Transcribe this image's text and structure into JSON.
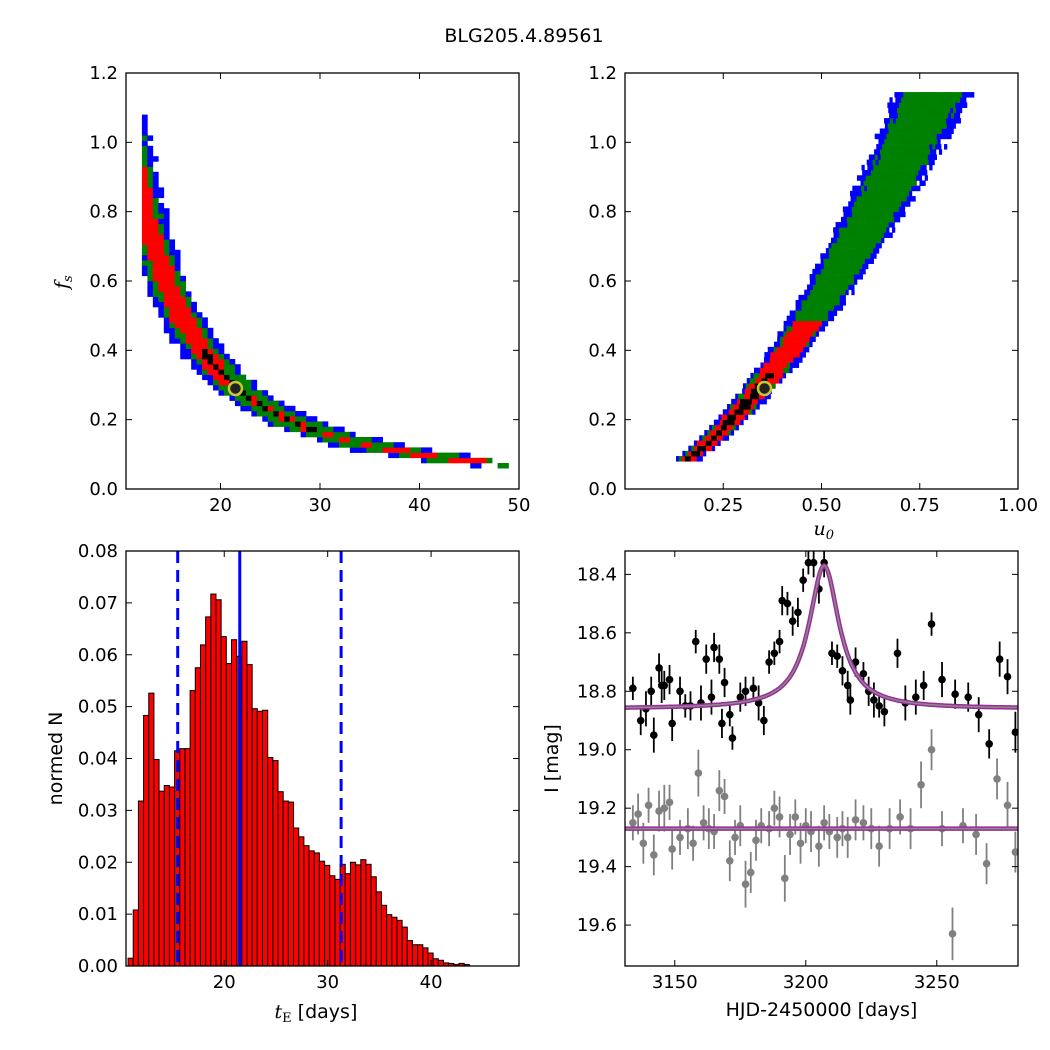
{
  "figure": {
    "title": "BLG205.4.89561"
  },
  "chart_data": [
    {
      "id": "fs_vs_tE",
      "type": "heatmap",
      "xlabel": "",
      "ylabel": "f_s",
      "ylabel_main": "f",
      "ylabel_sub": "s",
      "xlim": [
        10.5,
        50
      ],
      "ylim": [
        0,
        1.2
      ],
      "xticks": [
        20,
        30,
        40,
        50
      ],
      "yticks": [
        0.0,
        0.2,
        0.4,
        0.6,
        0.8,
        1.0,
        1.2
      ],
      "xtick_labels": [
        "20",
        "30",
        "40",
        "50"
      ],
      "ytick_labels": [
        "0.0",
        "0.2",
        "0.4",
        "0.6",
        "0.8",
        "1.0",
        "1.2"
      ],
      "confidence_colors": {
        "blue": "#0000ff",
        "green": "#008000",
        "red": "#ff0000",
        "best": "#000000"
      },
      "relation": "f_s ≈ 75 / t_E^1.82 (ridge of posterior)",
      "best_fit": {
        "x": 21.5,
        "y": 0.29
      },
      "marker": {
        "face": "#222222",
        "edge": "#c8c832"
      }
    },
    {
      "id": "fs_vs_u0",
      "type": "heatmap",
      "xlabel": "u_0",
      "xlabel_main": "u",
      "xlabel_sub": "0",
      "ylabel": "",
      "xlim": [
        0,
        1.0
      ],
      "ylim": [
        0,
        1.2
      ],
      "xticks": [
        0.25,
        0.5,
        0.75,
        1.0
      ],
      "yticks": [
        0.0,
        0.2,
        0.4,
        0.6,
        0.8,
        1.0,
        1.2
      ],
      "xtick_labels": [
        "0.25",
        "0.50",
        "0.75",
        "1.00"
      ],
      "ytick_labels": [
        "0.0",
        "0.2",
        "0.4",
        "0.6",
        "0.8",
        "1.0",
        "1.2"
      ],
      "relation": "f_s ≈ 1.7 * u_0^1.65",
      "best_fit": {
        "x": 0.355,
        "y": 0.29
      }
    },
    {
      "id": "tE_histogram",
      "type": "bar",
      "xlabel": "t_E [days]",
      "xlabel_main": "t",
      "xlabel_sub": "E",
      "xlabel_rest": " [days]",
      "ylabel": "normed N",
      "xlim": [
        10.5,
        48.5
      ],
      "ylim": [
        0,
        0.08
      ],
      "xticks": [
        20,
        30,
        40
      ],
      "yticks": [
        0.0,
        0.01,
        0.02,
        0.03,
        0.04,
        0.05,
        0.06,
        0.07,
        0.08
      ],
      "xtick_labels": [
        "20",
        "30",
        "40"
      ],
      "ytick_labels": [
        "0.00",
        "0.01",
        "0.02",
        "0.03",
        "0.04",
        "0.05",
        "0.06",
        "0.07",
        "0.08"
      ],
      "bin_start": 10.7,
      "bin_width": 0.5,
      "values": [
        0.0015,
        0.0108,
        0.0318,
        0.0483,
        0.0526,
        0.0398,
        0.0337,
        0.0348,
        0.0345,
        0.0415,
        0.0419,
        0.0419,
        0.0531,
        0.0575,
        0.0619,
        0.0673,
        0.0717,
        0.0706,
        0.0635,
        0.0583,
        0.0629,
        0.0597,
        0.0626,
        0.0581,
        0.0496,
        0.0491,
        0.0493,
        0.0402,
        0.0396,
        0.0336,
        0.0318,
        0.0316,
        0.0266,
        0.0249,
        0.0232,
        0.0222,
        0.0218,
        0.0202,
        0.0194,
        0.0174,
        0.0167,
        0.0196,
        0.0178,
        0.02,
        0.0195,
        0.0205,
        0.0196,
        0.0172,
        0.0143,
        0.0117,
        0.0099,
        0.0094,
        0.0088,
        0.0075,
        0.0049,
        0.0041,
        0.0041,
        0.0035,
        0.0025,
        0.0014,
        0.0011,
        0.0006,
        0.0005,
        0.0003,
        0.0005,
        0.0003
      ],
      "bar_color": "#ff0000",
      "bar_edge": "#000000",
      "vlines": [
        {
          "x": 15.5,
          "style": "dashed",
          "color": "#0000ff"
        },
        {
          "x": 21.5,
          "style": "solid",
          "color": "#0000ff"
        },
        {
          "x": 31.3,
          "style": "dashed",
          "color": "#0000ff"
        }
      ]
    },
    {
      "id": "lightcurve",
      "type": "scatter",
      "xlabel": "HJD-2450000 [days]",
      "ylabel": "I [mag]",
      "xlim": [
        3131,
        3281
      ],
      "ylim": [
        19.74,
        18.32
      ],
      "y_inverted": true,
      "xticks": [
        3150,
        3200,
        3250
      ],
      "yticks": [
        18.4,
        18.6,
        18.8,
        19.0,
        19.2,
        19.4,
        19.6
      ],
      "xtick_labels": [
        "3150",
        "3200",
        "3250"
      ],
      "ytick_labels": [
        "18.4",
        "18.6",
        "18.8",
        "19.0",
        "19.2",
        "19.4",
        "19.6"
      ],
      "model": {
        "t0": 3207,
        "baseline": 18.86,
        "peak": 18.37,
        "half_width": 7,
        "color": "#9b2d9b",
        "core": "#8a8a8a"
      },
      "baseline2": {
        "value": 19.27,
        "color": "#9b2d9b"
      },
      "series": [
        {
          "color": "#000000",
          "points": [
            [
              3134,
              18.79,
              0.04
            ],
            [
              3137,
              18.9,
              0.05
            ],
            [
              3139,
              18.86,
              0.06
            ],
            [
              3141,
              18.8,
              0.05
            ],
            [
              3142,
              18.95,
              0.06
            ],
            [
              3144,
              18.72,
              0.05
            ],
            [
              3145,
              18.78,
              0.06
            ],
            [
              3146,
              18.78,
              0.05
            ],
            [
              3148,
              18.76,
              0.05
            ],
            [
              3149,
              18.91,
              0.06
            ],
            [
              3152,
              18.8,
              0.05
            ],
            [
              3154,
              18.85,
              0.04
            ],
            [
              3156,
              18.85,
              0.05
            ],
            [
              3158,
              18.63,
              0.04
            ],
            [
              3160,
              18.84,
              0.06
            ],
            [
              3162,
              18.69,
              0.05
            ],
            [
              3164,
              18.82,
              0.06
            ],
            [
              3165,
              18.65,
              0.05
            ],
            [
              3167,
              18.69,
              0.05
            ],
            [
              3168,
              18.91,
              0.05
            ],
            [
              3169,
              18.77,
              0.05
            ],
            [
              3171,
              18.88,
              0.04
            ],
            [
              3172,
              18.96,
              0.04
            ],
            [
              3175,
              18.82,
              0.05
            ],
            [
              3177,
              18.8,
              0.05
            ],
            [
              3180,
              18.79,
              0.04
            ],
            [
              3182,
              18.84,
              0.06
            ],
            [
              3184,
              18.9,
              0.05
            ],
            [
              3186,
              18.7,
              0.04
            ],
            [
              3188,
              18.67,
              0.04
            ],
            [
              3190,
              18.63,
              0.04
            ],
            [
              3191,
              18.49,
              0.05
            ],
            [
              3193,
              18.5,
              0.04
            ],
            [
              3195,
              18.56,
              0.05
            ],
            [
              3197,
              18.53,
              0.05
            ],
            [
              3199,
              18.42,
              0.04
            ],
            [
              3201,
              18.36,
              0.04
            ],
            [
              3203,
              18.36,
              0.05
            ],
            [
              3205,
              18.45,
              0.05
            ],
            [
              3207,
              18.36,
              0.05
            ],
            [
              3210,
              18.67,
              0.04
            ],
            [
              3212,
              18.68,
              0.04
            ],
            [
              3214,
              18.73,
              0.05
            ],
            [
              3216,
              18.78,
              0.05
            ],
            [
              3217,
              18.83,
              0.05
            ],
            [
              3219,
              18.7,
              0.05
            ],
            [
              3222,
              18.74,
              0.04
            ],
            [
              3224,
              18.8,
              0.05
            ],
            [
              3226,
              18.83,
              0.06
            ],
            [
              3228,
              18.85,
              0.04
            ],
            [
              3230,
              18.87,
              0.05
            ],
            [
              3235,
              18.67,
              0.05
            ],
            [
              3238,
              18.84,
              0.06
            ],
            [
              3242,
              18.82,
              0.06
            ],
            [
              3245,
              18.78,
              0.05
            ],
            [
              3248,
              18.57,
              0.04
            ],
            [
              3252,
              18.76,
              0.06
            ],
            [
              3257,
              18.81,
              0.05
            ],
            [
              3262,
              18.82,
              0.05
            ],
            [
              3266,
              18.88,
              0.06
            ],
            [
              3270,
              18.98,
              0.05
            ],
            [
              3274,
              18.69,
              0.06
            ],
            [
              3277,
              18.75,
              0.06
            ],
            [
              3280,
              18.94,
              0.07
            ]
          ]
        },
        {
          "color": "#808080",
          "points": [
            [
              3134,
              19.25,
              0.06
            ],
            [
              3136,
              19.22,
              0.07
            ],
            [
              3138,
              19.32,
              0.07
            ],
            [
              3140,
              19.19,
              0.06
            ],
            [
              3142,
              19.36,
              0.07
            ],
            [
              3144,
              19.21,
              0.07
            ],
            [
              3146,
              19.2,
              0.08
            ],
            [
              3148,
              19.18,
              0.06
            ],
            [
              3149,
              19.34,
              0.07
            ],
            [
              3152,
              19.3,
              0.06
            ],
            [
              3155,
              19.27,
              0.07
            ],
            [
              3157,
              19.32,
              0.06
            ],
            [
              3159,
              19.08,
              0.08
            ],
            [
              3161,
              19.25,
              0.06
            ],
            [
              3163,
              19.27,
              0.07
            ],
            [
              3165,
              19.28,
              0.06
            ],
            [
              3167,
              19.14,
              0.07
            ],
            [
              3169,
              19.16,
              0.06
            ],
            [
              3171,
              19.38,
              0.07
            ],
            [
              3173,
              19.3,
              0.06
            ],
            [
              3175,
              19.26,
              0.07
            ],
            [
              3177,
              19.46,
              0.08
            ],
            [
              3179,
              19.42,
              0.07
            ],
            [
              3181,
              19.31,
              0.07
            ],
            [
              3183,
              19.26,
              0.06
            ],
            [
              3186,
              19.27,
              0.06
            ],
            [
              3188,
              19.2,
              0.06
            ],
            [
              3190,
              19.23,
              0.07
            ],
            [
              3192,
              19.44,
              0.08
            ],
            [
              3194,
              19.29,
              0.07
            ],
            [
              3196,
              19.23,
              0.06
            ],
            [
              3198,
              19.32,
              0.07
            ],
            [
              3200,
              19.26,
              0.06
            ],
            [
              3202,
              19.28,
              0.07
            ],
            [
              3205,
              19.33,
              0.07
            ],
            [
              3207,
              19.25,
              0.06
            ],
            [
              3209,
              19.28,
              0.06
            ],
            [
              3212,
              19.3,
              0.07
            ],
            [
              3214,
              19.27,
              0.06
            ],
            [
              3216,
              19.3,
              0.07
            ],
            [
              3219,
              19.24,
              0.07
            ],
            [
              3222,
              19.25,
              0.06
            ],
            [
              3225,
              19.27,
              0.07
            ],
            [
              3228,
              19.33,
              0.07
            ],
            [
              3232,
              19.27,
              0.07
            ],
            [
              3236,
              19.23,
              0.06
            ],
            [
              3240,
              19.27,
              0.07
            ],
            [
              3244,
              19.12,
              0.08
            ],
            [
              3248,
              19.0,
              0.07
            ],
            [
              3252,
              19.27,
              0.06
            ],
            [
              3256,
              19.63,
              0.09
            ],
            [
              3260,
              19.26,
              0.06
            ],
            [
              3265,
              19.29,
              0.07
            ],
            [
              3269,
              19.39,
              0.07
            ],
            [
              3273,
              19.1,
              0.07
            ],
            [
              3277,
              19.19,
              0.08
            ],
            [
              3280,
              19.35,
              0.07
            ]
          ]
        }
      ]
    }
  ]
}
